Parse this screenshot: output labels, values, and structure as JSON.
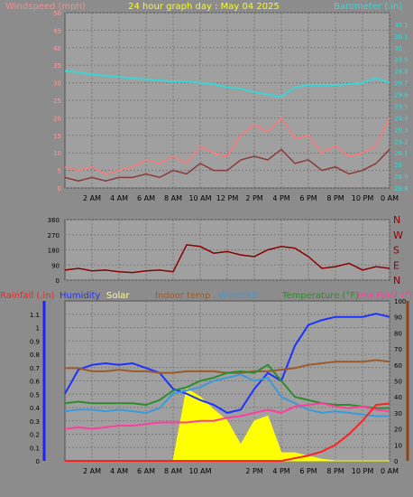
{
  "title": "24 hour graph day : May 04 2025",
  "chart_data": [
    {
      "type": "line",
      "panel": "wind-baro",
      "ylabel_left": "Windspeed (mph)",
      "ylabel_right": "Barometer (.in)",
      "ylim_left": [
        0,
        50
      ],
      "ylim_right": [
        28.8,
        30.3
      ],
      "y_ticks_left": [
        "0",
        "5",
        "10",
        "15",
        "20",
        "25",
        "30",
        "35",
        "40",
        "45",
        "50"
      ],
      "y_ticks_right": [
        "28.8",
        "28.9",
        "29",
        "29.1",
        "29.2",
        "29.3",
        "29.4",
        "29.5",
        "29.6",
        "29.7",
        "29.8",
        "29.9",
        "30",
        "30.1",
        "30.2"
      ],
      "x_ticks": [
        "2 AM",
        "4 AM",
        "6 AM",
        "8 AM",
        "10 AM",
        "12 PM",
        "2 PM",
        "4 PM",
        "6 PM",
        "8 PM",
        "10 PM",
        "0 AM"
      ],
      "x_hours": [
        0,
        1,
        2,
        3,
        4,
        5,
        6,
        7,
        8,
        9,
        10,
        11,
        12,
        13,
        14,
        15,
        16,
        17,
        18,
        19,
        20,
        21,
        22,
        23,
        24
      ],
      "series": [
        {
          "name": "Barometer",
          "color": "#3ad6d6",
          "values": [
            29.8,
            29.79,
            29.77,
            29.76,
            29.75,
            29.74,
            29.73,
            29.72,
            29.71,
            29.71,
            29.7,
            29.69,
            29.66,
            29.65,
            29.62,
            29.6,
            29.58,
            29.66,
            29.68,
            29.68,
            29.68,
            29.69,
            29.7,
            29.74,
            29.7
          ]
        },
        {
          "name": "Wind gust",
          "color": "#ff7878",
          "values": [
            6,
            5,
            6,
            4,
            5,
            6,
            8,
            7,
            9,
            7,
            12,
            10,
            9,
            15,
            18,
            16,
            20,
            14,
            15,
            10,
            12,
            9,
            10,
            12,
            20
          ]
        },
        {
          "name": "Wind average",
          "color": "#8a3a3a",
          "values": [
            3,
            2,
            3,
            2,
            3,
            3,
            4,
            3,
            5,
            4,
            7,
            5,
            5,
            8,
            9,
            8,
            11,
            7,
            8,
            5,
            6,
            4,
            5,
            7,
            11
          ]
        }
      ]
    },
    {
      "type": "line",
      "panel": "wind-direction",
      "ylim": [
        0,
        360
      ],
      "y_ticks": [
        "0",
        "90",
        "180",
        "270",
        "360"
      ],
      "compass_labels": [
        "N",
        "W",
        "S",
        "E",
        "N"
      ],
      "series": [
        {
          "name": "Wind direction",
          "color": "#8b0000",
          "values": [
            60,
            70,
            55,
            60,
            50,
            45,
            55,
            60,
            50,
            210,
            200,
            160,
            170,
            150,
            140,
            180,
            200,
            190,
            140,
            70,
            80,
            100,
            60,
            80,
            70
          ]
        }
      ]
    },
    {
      "type": "line",
      "panel": "temp-hum-rain-solar",
      "ylabel_left": "Rainfall (.in)",
      "ylim_left": [
        0,
        1.2
      ],
      "y_ticks_left": [
        "0",
        "0.1",
        "0.2",
        "0.3",
        "0.4",
        "0.5",
        "0.6",
        "0.7",
        "0.8",
        "0.9",
        "1",
        "1.1"
      ],
      "ylabel_right": "Dew Point (°F)",
      "ylim_right": [
        0,
        100
      ],
      "y_ticks_right": [
        "0",
        "10",
        "20",
        "30",
        "40",
        "50",
        "60",
        "70",
        "80",
        "90",
        "100"
      ],
      "x_ticks": [
        "2 AM",
        "4 AM",
        "6 AM",
        "8 AM",
        "10 AM",
        "2 PM",
        "4 PM",
        "6 PM",
        "8 PM",
        "10 PM",
        "0 AM"
      ],
      "legend": [
        "Rainfall (.in)",
        "Humidity",
        "Solar",
        "Indoor temp",
        "Windchill",
        "Temperature (°F)",
        "Dew Point (°F)"
      ],
      "series": [
        {
          "name": "Solar",
          "color": "#ffff00",
          "values": [
            0,
            0,
            0,
            0,
            0,
            0,
            0,
            0,
            0,
            45,
            40,
            32,
            25,
            10,
            25,
            28,
            5,
            5,
            3,
            1,
            0,
            0,
            0,
            0,
            0
          ]
        },
        {
          "name": "Humidity",
          "color": "#1e32ff",
          "values": [
            42,
            57,
            60,
            61,
            60,
            61,
            58,
            55,
            45,
            42,
            38,
            35,
            30,
            32,
            45,
            55,
            50,
            72,
            85,
            88,
            90,
            90,
            90,
            92,
            90
          ]
        },
        {
          "name": "Indoor temp",
          "color": "#9c5a2a",
          "values": [
            58,
            58,
            56,
            56,
            57,
            56,
            56,
            55,
            55,
            56,
            56,
            56,
            55,
            55,
            56,
            56,
            57,
            58,
            60,
            61,
            62,
            62,
            62,
            63,
            62
          ]
        },
        {
          "name": "Temperature",
          "color": "#2d8c2d",
          "values": [
            36,
            37,
            36,
            36,
            36,
            36,
            35,
            38,
            44,
            46,
            50,
            52,
            55,
            56,
            55,
            60,
            50,
            40,
            38,
            36,
            35,
            35,
            34,
            33,
            33
          ]
        },
        {
          "name": "Windchill",
          "color": "#3b9ad9",
          "values": [
            31,
            32,
            32,
            31,
            32,
            31,
            30,
            33,
            42,
            44,
            46,
            50,
            52,
            54,
            50,
            52,
            40,
            36,
            32,
            30,
            31,
            30,
            29,
            28,
            28
          ]
        },
        {
          "name": "Dew Point",
          "color": "#ff3da0",
          "values": [
            20,
            21,
            20,
            21,
            22,
            22,
            23,
            24,
            24,
            24,
            25,
            25,
            27,
            28,
            30,
            32,
            30,
            34,
            35,
            36,
            34,
            33,
            34,
            32,
            31
          ]
        },
        {
          "name": "Rainfall",
          "color": "#ff2020",
          "values": [
            0,
            0,
            0,
            0,
            0,
            0,
            0,
            0,
            0,
            0,
            0,
            0,
            0,
            0,
            0,
            0,
            0,
            0.02,
            0.04,
            0.07,
            0.12,
            0.2,
            0.3,
            0.42,
            0.43
          ]
        }
      ]
    }
  ]
}
